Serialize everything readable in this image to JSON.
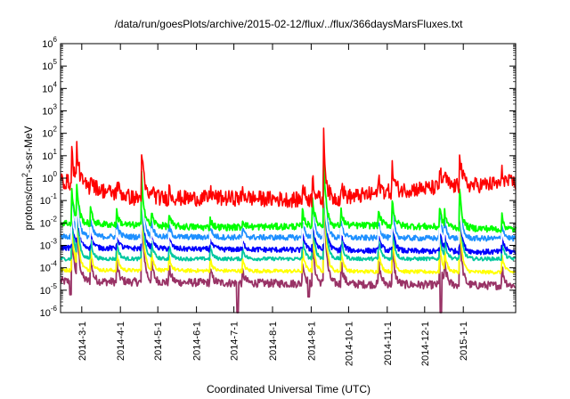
{
  "chart_data": {
    "type": "line",
    "title": "/data/run/goesPlots/archive/2015-02-12/flux/../flux/366daysMarsFluxes.txt",
    "xlabel": "Coordinated Universal Time (UTC)",
    "ylabel_main": "protons/cm",
    "ylabel_sup": "2",
    "ylabel_rest": "-s-sr-MeV",
    "yscale": "log",
    "ylim": [
      1e-06,
      1000000.0
    ],
    "xlim": [
      "2014-02-12",
      "2015-02-12"
    ],
    "grid": false,
    "y_ticks": [
      {
        "base": "10",
        "exp": "-6",
        "value": 1e-06
      },
      {
        "base": "10",
        "exp": "-5",
        "value": 1e-05
      },
      {
        "base": "10",
        "exp": "-4",
        "value": 0.0001
      },
      {
        "base": "10",
        "exp": "-3",
        "value": 0.001
      },
      {
        "base": "10",
        "exp": "-2",
        "value": 0.01
      },
      {
        "base": "10",
        "exp": "-1",
        "value": 0.1
      },
      {
        "base": "10",
        "exp": "0",
        "value": 1
      },
      {
        "base": "10",
        "exp": "1",
        "value": 10
      },
      {
        "base": "10",
        "exp": "2",
        "value": 100
      },
      {
        "base": "10",
        "exp": "3",
        "value": 1000
      },
      {
        "base": "10",
        "exp": "4",
        "value": 10000
      },
      {
        "base": "10",
        "exp": "5",
        "value": 100000
      },
      {
        "base": "10",
        "exp": "6",
        "value": 1000000
      }
    ],
    "x_ticks": [
      "2014-3-1",
      "2014-4-1",
      "2014-5-1",
      "2014-6-1",
      "2014-7-1",
      "2014-8-1",
      "2014-9-1",
      "2014-10-1",
      "2014-11-1",
      "2014-12-1",
      "2015-1-1"
    ],
    "x_tick_dates": [
      "2014-03-01",
      "2014-04-01",
      "2014-05-01",
      "2014-06-01",
      "2014-07-01",
      "2014-08-01",
      "2014-09-01",
      "2014-10-01",
      "2014-11-01",
      "2014-12-01",
      "2015-01-01"
    ],
    "events": [
      {
        "date": "2014-02-21",
        "scale": 1.3
      },
      {
        "date": "2014-02-25",
        "scale": 1.6
      },
      {
        "date": "2014-03-08",
        "scale": 0.6
      },
      {
        "date": "2014-03-29",
        "scale": 0.5
      },
      {
        "date": "2014-04-18",
        "scale": 2.0
      },
      {
        "date": "2014-04-26",
        "scale": 0.5
      },
      {
        "date": "2014-05-10",
        "scale": 0.4
      },
      {
        "date": "2014-06-12",
        "scale": 0.35
      },
      {
        "date": "2014-07-08",
        "scale": 0.3
      },
      {
        "date": "2014-08-25",
        "scale": 0.6
      },
      {
        "date": "2014-09-02",
        "scale": 1.1
      },
      {
        "date": "2014-09-11",
        "scale": 2.6
      },
      {
        "date": "2014-09-25",
        "scale": 0.6
      },
      {
        "date": "2014-10-25",
        "scale": 0.6
      },
      {
        "date": "2014-11-05",
        "scale": 1.0
      },
      {
        "date": "2014-12-13",
        "scale": 0.8
      },
      {
        "date": "2014-12-17",
        "scale": 0.6
      },
      {
        "date": "2014-12-29",
        "scale": 1.5
      },
      {
        "date": "2015-02-01",
        "scale": 0.5
      }
    ],
    "series": [
      {
        "color": "#ff0000",
        "base_log": -0.9,
        "peak_log": 2.0,
        "noise_log": 0.35,
        "values_log": [
          [
            0,
            -0.1
          ],
          [
            60,
            -0.9
          ],
          [
            150,
            -0.9
          ],
          [
            210,
            -1.0
          ],
          [
            280,
            -0.5
          ],
          [
            366,
            -0.2
          ]
        ]
      },
      {
        "color": "#00ff00",
        "base_log": -2.1,
        "peak_log": 1.2,
        "noise_log": 0.15,
        "values_log": [
          [
            0,
            -2.0
          ],
          [
            120,
            -2.2
          ],
          [
            260,
            -2.1
          ],
          [
            366,
            -2.3
          ]
        ]
      },
      {
        "color": "#1e90ff",
        "base_log": -2.65,
        "peak_log": 1.0,
        "noise_log": 0.12,
        "values_log": [
          [
            0,
            -2.6
          ],
          [
            366,
            -2.7
          ]
        ]
      },
      {
        "color": "#0000ff",
        "base_log": -3.2,
        "peak_log": 1.0,
        "noise_log": 0.12,
        "values_log": [
          [
            0,
            -3.1
          ],
          [
            366,
            -3.3
          ]
        ]
      },
      {
        "color": "#ffffff",
        "base_log": -2.95,
        "peak_log": 0.8,
        "noise_log": 0.1,
        "values_log": [
          [
            0,
            -2.9
          ],
          [
            366,
            -3.0
          ]
        ]
      },
      {
        "color": "#00c8a0",
        "base_log": -3.6,
        "peak_log": 0.8,
        "noise_log": 0.08,
        "values_log": [
          [
            0,
            -3.6
          ],
          [
            366,
            -3.6
          ]
        ]
      },
      {
        "color": "#ffff00",
        "base_log": -4.1,
        "peak_log": 0.5,
        "noise_log": 0.08,
        "values_log": [
          [
            0,
            -4.1
          ],
          [
            366,
            -4.2
          ]
        ]
      },
      {
        "color": "#993366",
        "base_log": -4.7,
        "peak_log": 0.4,
        "noise_log": 0.18,
        "values_log": [
          [
            0,
            -4.6
          ],
          [
            366,
            -4.8
          ]
        ]
      }
    ],
    "dips": [
      {
        "date": "2014-02-20",
        "series": 7,
        "log": -5.2
      },
      {
        "date": "2014-07-04",
        "series": 7,
        "log": -6.0
      },
      {
        "date": "2014-08-30",
        "series": 7,
        "log": -5.3
      },
      {
        "date": "2014-12-14",
        "series": 7,
        "log": -6.0
      }
    ]
  }
}
